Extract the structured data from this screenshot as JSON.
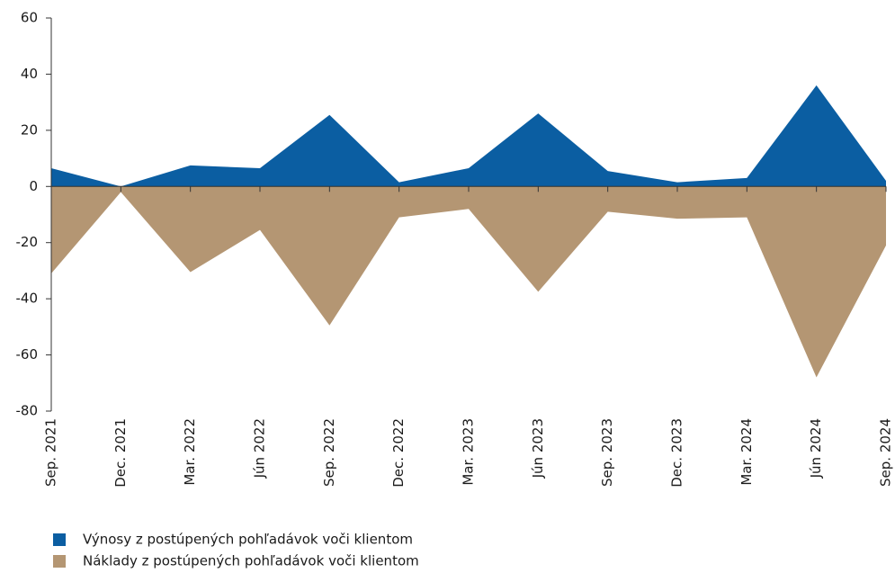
{
  "chart_data": {
    "type": "area",
    "categories": [
      "Sep. 2021",
      "Dec. 2021",
      "Mar. 2022",
      "Jún 2022",
      "Sep. 2022",
      "Dec. 2022",
      "Mar. 2023",
      "Jún 2023",
      "Sep. 2023",
      "Dec. 2023",
      "Mar. 2024",
      "Jún 2024",
      "Sep. 2024"
    ],
    "series": [
      {
        "name": "Výnosy z postúpených pohľadávok voči klientom",
        "color": "#0b5ea2",
        "values": [
          6.5,
          0,
          7.5,
          6.5,
          25.5,
          1.5,
          6.5,
          26,
          5.5,
          1.5,
          3,
          36,
          2
        ]
      },
      {
        "name": "Náklady z postúpených pohľadávok voči klientom",
        "color": "#b49673",
        "values": [
          -31,
          -2,
          -30.5,
          -15.5,
          -49.5,
          -11,
          -8,
          -37.5,
          -9,
          -11.5,
          -11,
          -68,
          -21
        ]
      }
    ],
    "ylim": [
      -80,
      60
    ],
    "yticks": [
      -80,
      -60,
      -40,
      -20,
      0,
      20,
      40,
      60
    ],
    "legend": "bottom-left"
  }
}
